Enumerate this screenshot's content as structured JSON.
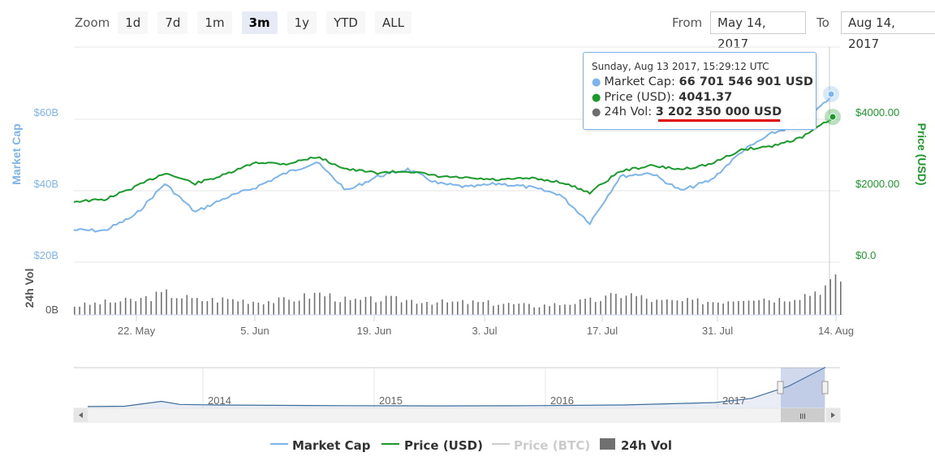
{
  "zoom": {
    "label": "Zoom",
    "buttons": [
      "1d",
      "7d",
      "1m",
      "3m",
      "1y",
      "YTD",
      "ALL"
    ],
    "active": "3m"
  },
  "range": {
    "from_label": "From",
    "from_value": "May 14, 2017",
    "to_label": "To",
    "to_value": "Aug 14, 2017"
  },
  "tooltip": {
    "header": "Sunday, Aug 13 2017, 15:29:12 UTC",
    "rows": [
      {
        "label": "Market Cap",
        "value": "66 701 546 901 USD",
        "color": "#7cb5ec"
      },
      {
        "label": "Price (USD)",
        "value": "4041.37",
        "color": "#1a9a2a"
      },
      {
        "label": "24h Vol",
        "value": "3 202 350 000 USD",
        "color": "#6e6e6e"
      }
    ],
    "highlight_color": "#e00000"
  },
  "colors": {
    "market_cap": "#7cb5ec",
    "price_usd": "#1a9a2a",
    "price_btc": "#cccccc",
    "volume": "#707070"
  },
  "chart_data": [
    {
      "type": "line",
      "series": [
        {
          "name": "Market Cap",
          "axis": "left",
          "x": [
            "May 14",
            "May 18",
            "May 22",
            "May 26",
            "May 29",
            "Jun 1",
            "Jun 5",
            "Jun 8",
            "Jun 12",
            "Jun 15",
            "Jun 19",
            "Jun 22",
            "Jun 26",
            "Jul 1",
            "Jul 3",
            "Jul 8",
            "Jul 12",
            "Jul 16",
            "Jul 19",
            "Jul 22",
            "Jul 26",
            "Jul 31",
            "Aug 4",
            "Aug 7",
            "Aug 10",
            "Aug 13"
          ],
          "values": [
            29,
            28.8,
            33,
            42,
            34,
            38,
            41,
            45,
            48,
            40,
            44,
            46,
            42,
            41,
            42,
            41,
            39,
            31,
            44,
            45,
            40,
            43,
            51,
            56,
            59,
            66.7
          ]
        },
        {
          "name": "Price (USD)",
          "axis": "right",
          "x": [
            "May 14",
            "May 18",
            "May 22",
            "May 26",
            "May 29",
            "Jun 1",
            "Jun 5",
            "Jun 8",
            "Jun 12",
            "Jun 15",
            "Jun 19",
            "Jun 22",
            "Jun 26",
            "Jul 1",
            "Jul 3",
            "Jul 8",
            "Jul 12",
            "Jul 16",
            "Jul 19",
            "Jul 22",
            "Jul 26",
            "Jul 31",
            "Aug 4",
            "Aug 7",
            "Aug 10",
            "Aug 13"
          ],
          "values": [
            1700,
            1750,
            2100,
            2500,
            2200,
            2450,
            2800,
            2750,
            2950,
            2600,
            2500,
            2550,
            2400,
            2350,
            2300,
            2350,
            2250,
            1950,
            2550,
            2700,
            2600,
            2750,
            3150,
            3250,
            3500,
            4041.37
          ]
        },
        {
          "name": "24h Vol",
          "axis": "volume",
          "type": "bar",
          "x": [
            "May 14",
            "May 18",
            "May 22",
            "May 26",
            "May 29",
            "Jun 1",
            "Jun 5",
            "Jun 8",
            "Jun 12",
            "Jun 15",
            "Jun 19",
            "Jun 22",
            "Jun 26",
            "Jul 1",
            "Jul 3",
            "Jul 8",
            "Jul 12",
            "Jul 16",
            "Jul 19",
            "Jul 22",
            "Jul 26",
            "Jul 31",
            "Aug 4",
            "Aug 7",
            "Aug 10",
            "Aug 13"
          ],
          "values": [
            0.8,
            1.1,
            1.3,
            1.9,
            1.3,
            1.4,
            1.2,
            1.3,
            1.9,
            1.2,
            1.4,
            1.3,
            1.1,
            1.1,
            1.0,
            0.8,
            1.0,
            1.3,
            1.9,
            1.2,
            1.2,
            1.2,
            1.6,
            1.4,
            1.9,
            3.2
          ]
        }
      ],
      "x_ticks": [
        "22. May",
        "5. Jun",
        "19. Jun",
        "3. Jul",
        "17. Jul",
        "31. Jul",
        "14. Aug"
      ],
      "left_axis": {
        "label": "Market Cap",
        "ticks": [
          "$20B",
          "$40B",
          "$60B"
        ],
        "range": [
          20,
          80
        ]
      },
      "right_axis": {
        "label": "Price (USD)",
        "ticks": [
          "$0.0",
          "$2000.00",
          "$4000.00"
        ],
        "range": [
          0,
          6000
        ]
      },
      "volume_axis": {
        "label": "24h Vol",
        "ticks": [
          "0B"
        ]
      },
      "grid": true
    },
    {
      "type": "area",
      "name": "navigator",
      "x": [
        2013.6,
        2013.8,
        2014.0,
        2014.1,
        2014.3,
        2014.6,
        2015.0,
        2015.5,
        2016.0,
        2016.5,
        2017.0,
        2017.2,
        2017.4,
        2017.6
      ],
      "values": [
        1.5,
        2.0,
        10,
        5,
        4,
        3.5,
        3,
        2.5,
        3,
        4,
        8,
        15,
        35,
        66
      ],
      "x_ticks": [
        "2014",
        "2015",
        "2016",
        "2017"
      ]
    }
  ],
  "navigator": {
    "scrollbar_grip": "III"
  },
  "legend": [
    {
      "label": "Market Cap",
      "color": "#7cb5ec",
      "hidden": false
    },
    {
      "label": "Price (USD)",
      "color": "#1a9a2a",
      "hidden": false
    },
    {
      "label": "Price (BTC)",
      "color": "#cccccc",
      "hidden": true
    },
    {
      "label": "24h Vol",
      "color": "#707070",
      "hidden": false
    }
  ]
}
